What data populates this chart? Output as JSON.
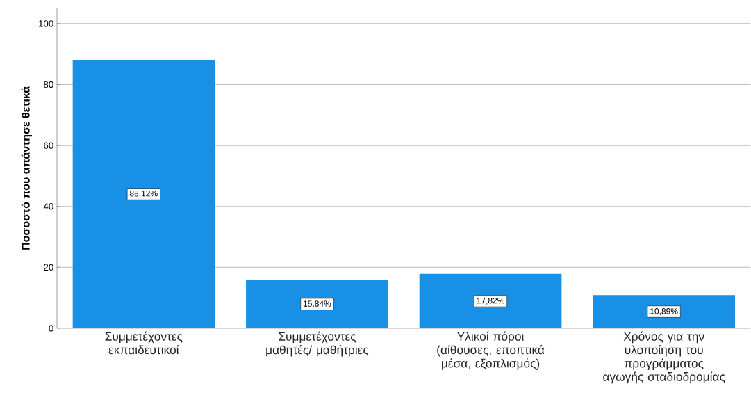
{
  "chart_data": {
    "type": "bar",
    "ylabel": "Ποσοστό που απάντησε θετικά",
    "categories": [
      "Συμμετέχοντες εκπαιδευτικοί",
      "Συμμετέχοντες μαθητές/ μαθήτριες",
      "Υλικοί πόροι (αίθουσες, εποπτικά μέσα, εξοπλισμός)",
      "Χρόνος για την υλοποίηση του προγράμματος αγωγής σταδιοδρομίας"
    ],
    "values": [
      88.12,
      15.84,
      17.82,
      10.89
    ],
    "value_labels": [
      "88,12%",
      "15,84%",
      "17,82%",
      "10,89%"
    ],
    "color": "#1790e6",
    "ylim": [
      0,
      105
    ],
    "yticks": [
      0,
      20,
      40,
      60,
      80,
      100
    ],
    "grid": "y"
  }
}
